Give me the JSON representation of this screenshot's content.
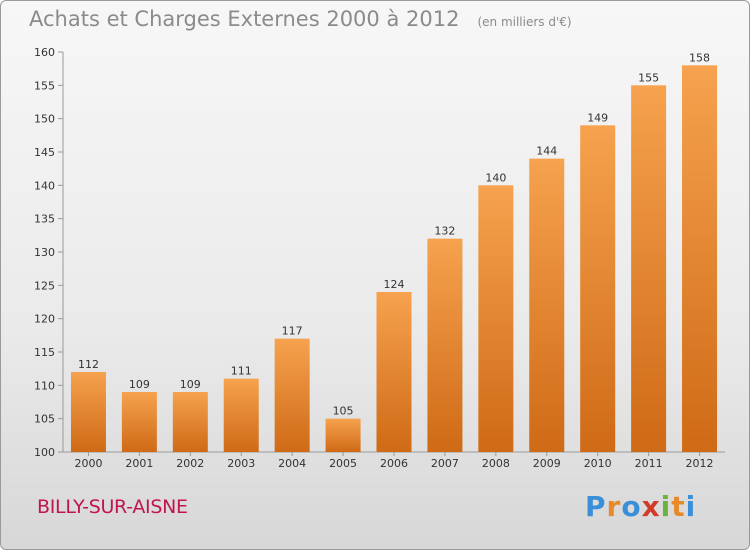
{
  "header": {
    "title": "Achats et Charges Externes 2000 à 2012",
    "unit": "(en milliers d'€)"
  },
  "footer": {
    "commune": "BILLY-SUR-AISNE",
    "brand": "Proxiti"
  },
  "colors": {
    "bar_light": "#f6a24e",
    "bar_dark": "#cf6a16",
    "commune": "#c0154e"
  },
  "chart_data": {
    "type": "bar",
    "categories": [
      "2000",
      "2001",
      "2002",
      "2003",
      "2004",
      "2005",
      "2006",
      "2007",
      "2008",
      "2009",
      "2010",
      "2011",
      "2012"
    ],
    "values": [
      112,
      109,
      109,
      111,
      117,
      105,
      124,
      132,
      140,
      144,
      149,
      155,
      158
    ],
    "ylim": [
      100,
      160
    ],
    "yticks": [
      100,
      105,
      110,
      115,
      120,
      125,
      130,
      135,
      140,
      145,
      150,
      155,
      160
    ],
    "grid": false
  }
}
